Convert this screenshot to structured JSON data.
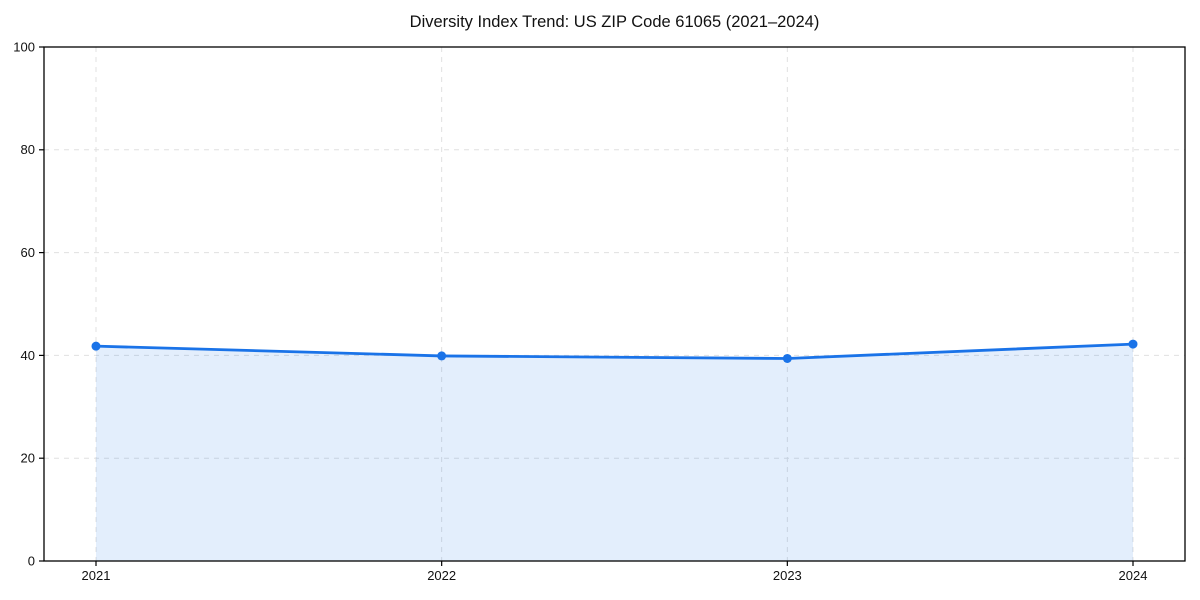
{
  "chart_data": {
    "type": "area",
    "title": "Diversity Index Trend: US ZIP Code 61065 (2021–2024)",
    "categories": [
      "2021",
      "2022",
      "2023",
      "2024"
    ],
    "values": [
      41.8,
      39.9,
      39.4,
      42.2
    ],
    "xlabel": "",
    "ylabel": "",
    "ylim": [
      0,
      100
    ],
    "y_ticks": [
      0,
      20,
      40,
      60,
      80,
      100
    ],
    "grid": true,
    "legend": "none",
    "line_color": "#1a73e8",
    "marker_color": "#1a73e8",
    "fill_color": "#1a73e8",
    "fill_opacity": 0.12,
    "grid_color": "#e0e0e0",
    "spine_color": "#000000",
    "tick_label_color": "#111111"
  }
}
